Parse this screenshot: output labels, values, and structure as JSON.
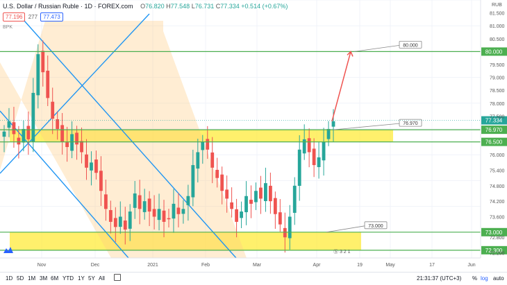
{
  "header": {
    "symbol": "U.S. Dollar / Russian Ruble · 1D · FOREX.com",
    "ohlc": {
      "o_label": "O",
      "o": "76.820",
      "h_label": "H",
      "h": "77.548",
      "l_label": "L",
      "l": "76.731",
      "c_label": "C",
      "c": "77.334",
      "chg": "+0.514 (+0.67%)"
    },
    "bid": "77.196",
    "spread": "277",
    "ask": "77.473",
    "study": "BPK"
  },
  "axis": {
    "currency": "RUB",
    "price_ticks": [
      "81.500",
      "81.000",
      "80.500",
      "79.500",
      "79.000",
      "78.500",
      "78.000",
      "77.500",
      "76.000",
      "75.400",
      "74.800",
      "74.200",
      "73.600",
      "72.800",
      "72.200"
    ],
    "time_ticks": [
      "Nov",
      "Dec",
      "2021",
      "Feb",
      "Mar",
      "Apr",
      "19",
      "May",
      "17",
      "Jun"
    ]
  },
  "levels": [
    {
      "value": "80.000",
      "label": "80.000",
      "color": "#4caf50"
    },
    {
      "value": "76.970",
      "label": "76.970",
      "color": "#4caf50"
    },
    {
      "value": "76.500",
      "label": "76.500",
      "color": "#4caf50"
    },
    {
      "value": "73.000",
      "label": "73.000",
      "color": "#4caf50"
    },
    {
      "value": "72.300",
      "label": "72.300",
      "color": "#4caf50"
    }
  ],
  "last_price": {
    "value": "77.334",
    "color": "#26a69a"
  },
  "callouts": [
    "80.000",
    "76.970",
    "73.000"
  ],
  "pattern_label": "Ⓢ 3 2 1",
  "bottom": {
    "ranges": [
      "1D",
      "5D",
      "1M",
      "3M",
      "6M",
      "YTD",
      "1Y",
      "5Y",
      "All"
    ],
    "clock": "21:31:37 (UTC+3)",
    "pct": "%",
    "log": "log",
    "auto": "auto"
  },
  "chart_data": {
    "type": "candlestick",
    "title": "U.S. Dollar / Russian Ruble · 1D · FOREX.com",
    "ylim": [
      72.0,
      82.0
    ],
    "up_color": "#26a69a",
    "down_color": "#ef5350",
    "support_resistance": [
      80.0,
      76.97,
      76.5,
      73.0,
      72.3
    ],
    "zones": [
      {
        "from": 76.5,
        "to": 76.97,
        "color": "#ffeb3b"
      },
      {
        "from": 72.3,
        "to": 73.0,
        "color": "#ffeb3b"
      }
    ],
    "forecast_target": 80.0,
    "series": [
      {
        "name": "close",
        "values": [
          76.9,
          77.3,
          76.8,
          76.4,
          77.0,
          76.6,
          78.4,
          79.9,
          79.2,
          78.2,
          77.4,
          77.0,
          76.5,
          76.3,
          76.8,
          76.4,
          76.1,
          75.5,
          75.7,
          75.3,
          74.6,
          73.9,
          73.4,
          73.2,
          73.6,
          73.1,
          73.8,
          74.5,
          73.9,
          74.2,
          73.8,
          73.6,
          73.9,
          73.4,
          73.5,
          74.1,
          73.7,
          73.9,
          74.4,
          75.6,
          76.1,
          76.5,
          76.2,
          75.5,
          75.1,
          74.6,
          74.3,
          73.9,
          73.4,
          73.8,
          74.4,
          74.1,
          74.6,
          74.3,
          74.9,
          74.2,
          73.7,
          73.3,
          72.8,
          73.6,
          74.8,
          76.2,
          76.6,
          76.1,
          75.6,
          75.9,
          76.5,
          77.0,
          77.3
        ]
      }
    ]
  }
}
